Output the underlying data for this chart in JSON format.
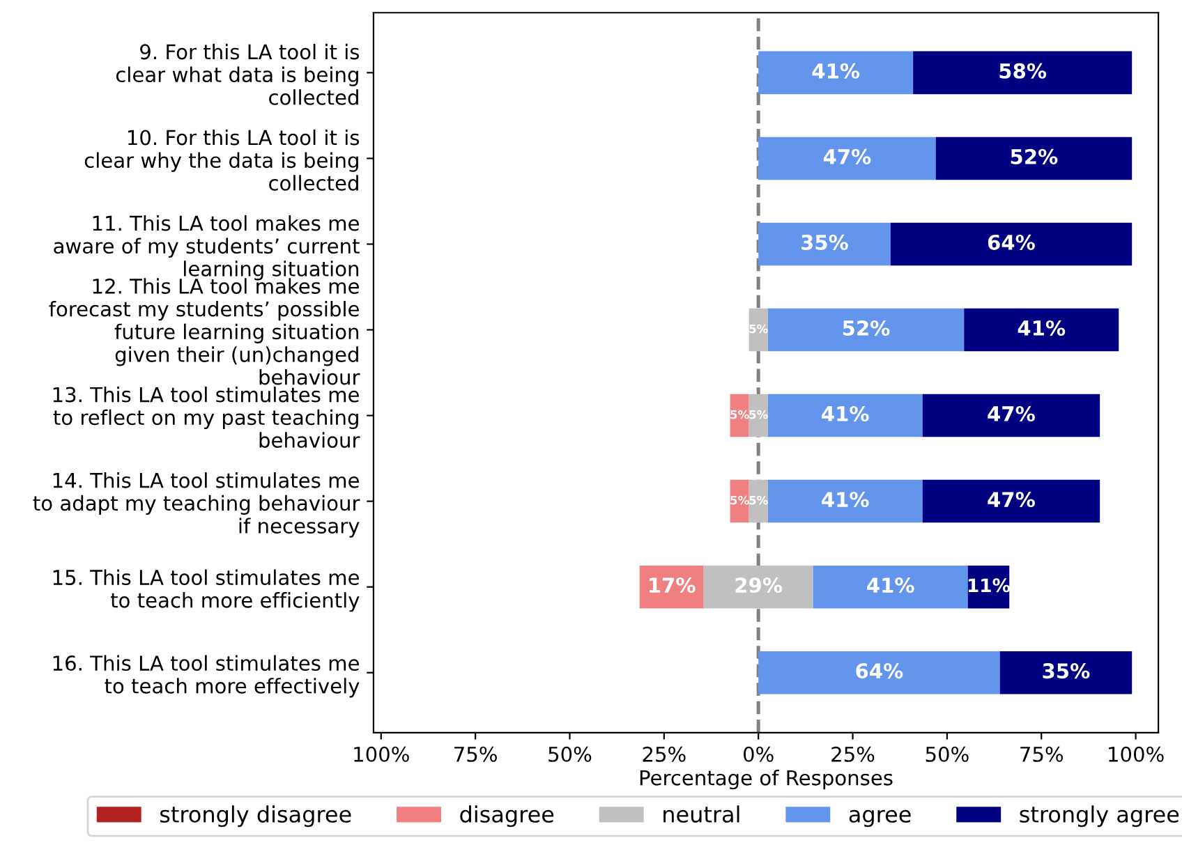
{
  "chart_data": {
    "type": "bar",
    "orientation": "horizontal",
    "xlabel": "Percentage of Responses",
    "categories": [
      "9. For this LA tool it is\nclear what data is being\ncollected",
      "10. For this LA tool it is\nclear why the data is being\ncollected",
      "11. This LA tool makes me\naware of my students’ current\nlearning situation",
      "12. This LA tool makes me\nforecast my students’ possible\nfuture learning situation\ngiven their (un)changed\nbehaviour",
      "13. This LA tool stimulates me\nto reflect on my past teaching\nbehaviour",
      "14. This LA tool stimulates me\nto adapt my teaching behaviour\nif necessary",
      "15. This LA tool stimulates me\nto teach more efficiently",
      "16. This LA tool stimulates me\nto teach more effectively"
    ],
    "series": [
      {
        "name": "strongly disagree",
        "color": "#b22222",
        "values": [
          null,
          null,
          null,
          null,
          null,
          null,
          null,
          null
        ],
        "base": [
          null,
          null,
          null,
          null,
          null,
          null,
          null,
          null
        ]
      },
      {
        "name": "disagree",
        "color": "#f08080",
        "values": [
          null,
          null,
          null,
          null,
          5,
          5,
          17,
          null
        ],
        "base": [
          null,
          null,
          null,
          null,
          -7.5,
          -7.5,
          -31.5,
          null
        ],
        "value_labels": [
          null,
          null,
          null,
          null,
          "5%",
          "5%",
          "17%",
          null
        ]
      },
      {
        "name": "neutral",
        "color": "#c0c0c0",
        "values": [
          null,
          null,
          null,
          5,
          5,
          5,
          29,
          null
        ],
        "base": [
          null,
          null,
          null,
          -2.5,
          -2.5,
          -2.5,
          -14.5,
          null
        ],
        "value_labels": [
          null,
          null,
          null,
          "5%",
          "5%",
          "5%",
          "29%",
          null
        ]
      },
      {
        "name": "agree",
        "color": "#6495ed",
        "values": [
          41,
          47,
          35,
          52,
          41,
          41,
          41,
          64
        ],
        "base": [
          0,
          0,
          0,
          2.5,
          2.5,
          2.5,
          14.5,
          0
        ],
        "value_labels": [
          "41%",
          "47%",
          "35%",
          "52%",
          "41%",
          "41%",
          "41%",
          "64%"
        ]
      },
      {
        "name": "strongly agree",
        "color": "#000080",
        "values": [
          58,
          52,
          64,
          41,
          47,
          47,
          11,
          35
        ],
        "base": [
          41,
          47,
          35,
          54.5,
          43.5,
          43.5,
          55.5,
          64
        ],
        "value_labels": [
          "58%",
          "52%",
          "64%",
          "41%",
          "47%",
          "47%",
          "11%",
          "35%"
        ]
      }
    ],
    "xlim": [
      -102,
      106
    ],
    "xticks": [
      {
        "value": -100,
        "label": "100%"
      },
      {
        "value": -75,
        "label": "75%"
      },
      {
        "value": -50,
        "label": "50%"
      },
      {
        "value": -25,
        "label": "25%"
      },
      {
        "value": 0,
        "label": "0%"
      },
      {
        "value": 25,
        "label": "25%"
      },
      {
        "value": 50,
        "label": "50%"
      },
      {
        "value": 75,
        "label": "75%"
      },
      {
        "value": 100,
        "label": "100%"
      }
    ],
    "ref_lines": [
      {
        "axis": "x",
        "value": 0,
        "color": "#808080",
        "line_style": "dashed"
      }
    ],
    "legend": "bottom"
  }
}
